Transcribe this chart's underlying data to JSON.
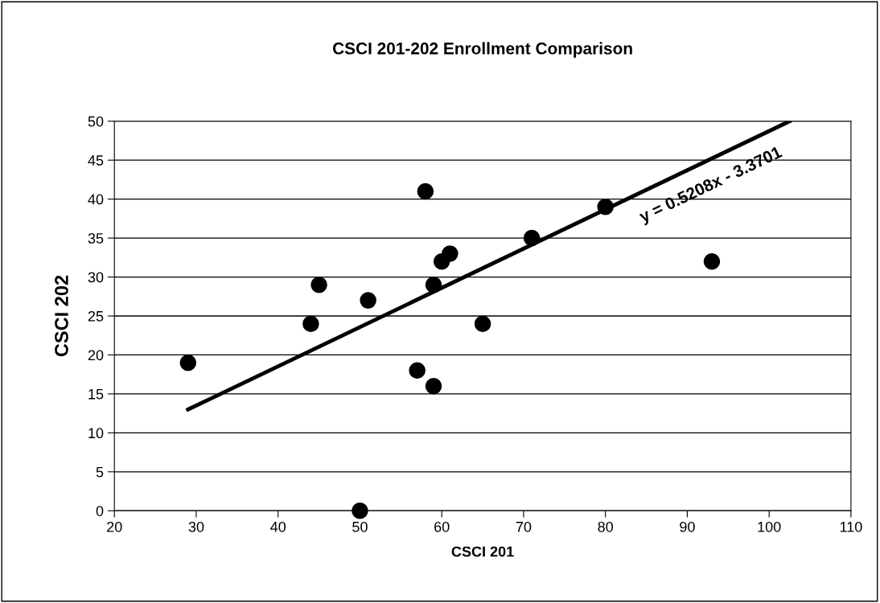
{
  "chart_data": {
    "type": "scatter",
    "title": "CSCI 201-202 Enrollment Comparison",
    "xlabel": "CSCI 201",
    "ylabel": "CSCI 202",
    "series": [
      {
        "color": "#000000",
        "marker": "circle",
        "x": [
          29,
          44,
          45,
          50,
          51,
          57,
          58,
          59,
          59,
          60,
          61,
          65,
          71,
          80,
          93
        ],
        "values": [
          19,
          24,
          29,
          0,
          27,
          18,
          41,
          29,
          16,
          32,
          33,
          24,
          35,
          39,
          32
        ]
      },
      {
        "type": "line",
        "color": "#000000",
        "line_style": "solid",
        "x": [
          29,
          102.5
        ],
        "values": [
          13,
          50
        ]
      }
    ],
    "annotations": [
      "y = 0.5208x - 3.3701"
    ],
    "xlim": [
      20,
      110
    ],
    "xticks": [
      20,
      30,
      40,
      50,
      60,
      70,
      80,
      90,
      100,
      110
    ],
    "ylim": [
      0,
      50
    ],
    "yticks": [
      0,
      5,
      10,
      15,
      20,
      25,
      30,
      35,
      40,
      45,
      50
    ],
    "grid": "y",
    "legend": false
  }
}
